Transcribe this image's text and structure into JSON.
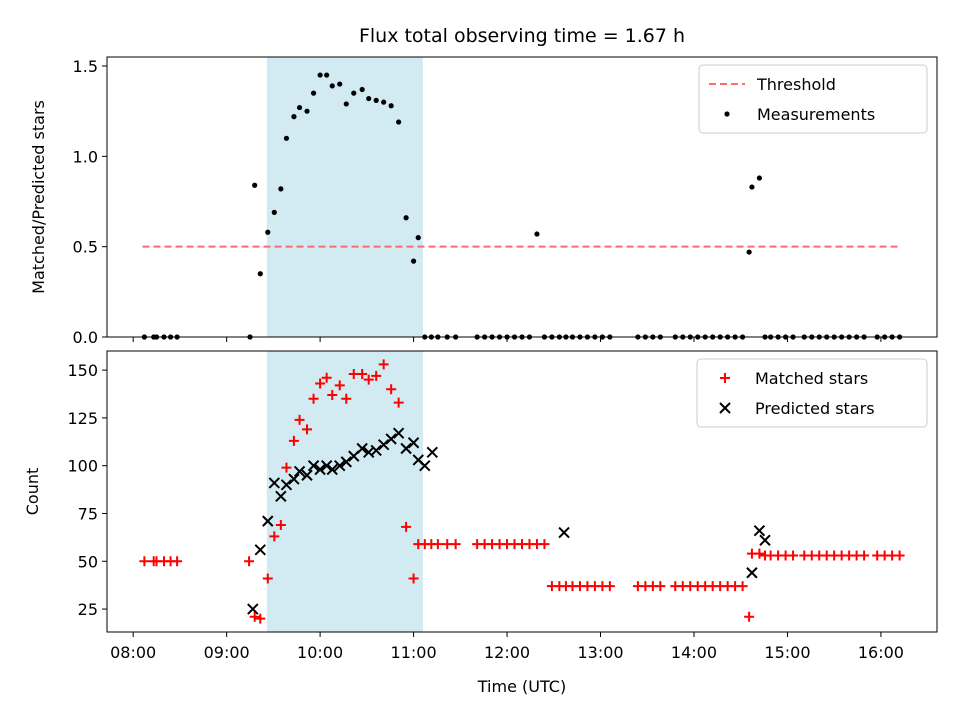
{
  "title": "Flux total observing time = 1.67 h",
  "colors": {
    "threshold": "#ff6a6a",
    "measurement": "#000000",
    "matched": "#ff0000",
    "predicted": "#000000",
    "span": "#add8e6"
  },
  "chart_data": [
    {
      "name": "ratio-panel",
      "type": "scatter",
      "ylabel": "Matched/Predicted stars",
      "xlim": [
        7.72,
        16.6
      ],
      "ylim": [
        0,
        1.55
      ],
      "yticks": [
        0,
        0.5,
        1.0,
        1.5
      ],
      "yticklabels": [
        "0.0",
        "0.5",
        "1.0",
        "1.5"
      ],
      "xticks": [
        8,
        9,
        10,
        11,
        12,
        13,
        14,
        15,
        16
      ],
      "span": [
        9.43,
        11.1
      ],
      "threshold": {
        "label": "Threshold",
        "value": 0.5,
        "x": [
          8.1,
          16.2
        ]
      },
      "legend": [
        "Threshold",
        "Measurements"
      ],
      "legend_loc": "top-right",
      "series": [
        {
          "name": "Measurements",
          "x": [
            8.12,
            8.22,
            8.25,
            8.33,
            8.4,
            8.47,
            9.25,
            9.3,
            9.36,
            9.44,
            9.51,
            9.58,
            9.64,
            9.72,
            9.78,
            9.86,
            9.93,
            10.0,
            10.07,
            10.13,
            10.21,
            10.28,
            10.36,
            10.45,
            10.52,
            10.6,
            10.68,
            10.76,
            10.84,
            10.92,
            11.0,
            11.05,
            11.12,
            11.19,
            11.26,
            11.36,
            11.45,
            11.68,
            11.76,
            11.84,
            11.92,
            12.0,
            12.08,
            12.16,
            12.24,
            12.32,
            12.4,
            12.48,
            12.56,
            12.63,
            12.7,
            12.78,
            12.86,
            12.94,
            13.02,
            13.1,
            13.4,
            13.48,
            13.56,
            13.64,
            13.8,
            13.88,
            13.96,
            14.04,
            14.12,
            14.2,
            14.28,
            14.36,
            14.44,
            14.52,
            14.59,
            14.62,
            14.7,
            14.76,
            14.82,
            14.9,
            14.98,
            15.06,
            15.18,
            15.26,
            15.34,
            15.42,
            15.5,
            15.58,
            15.66,
            15.74,
            15.82,
            15.96,
            16.04,
            16.12,
            16.2
          ],
          "y": [
            0,
            0,
            0,
            0,
            0,
            0,
            0,
            0.84,
            0.35,
            0.58,
            0.69,
            0.82,
            1.1,
            1.22,
            1.27,
            1.25,
            1.35,
            1.45,
            1.45,
            1.39,
            1.4,
            1.29,
            1.35,
            1.37,
            1.32,
            1.31,
            1.3,
            1.28,
            1.19,
            0.66,
            0.42,
            0.55,
            0,
            0,
            0,
            0,
            0,
            0,
            0,
            0,
            0,
            0,
            0,
            0,
            0,
            0.57,
            0,
            0,
            0,
            0,
            0,
            0,
            0,
            0,
            0,
            0,
            0,
            0,
            0,
            0,
            0,
            0,
            0,
            0,
            0,
            0,
            0,
            0,
            0,
            0,
            0.47,
            0.83,
            0.88,
            0,
            0,
            0,
            0,
            0,
            0,
            0,
            0,
            0,
            0,
            0,
            0,
            0,
            0,
            0,
            0,
            0,
            0
          ]
        }
      ]
    },
    {
      "name": "count-panel",
      "type": "scatter",
      "xlabel": "Time (UTC)",
      "ylabel": "Count",
      "xlim": [
        7.72,
        16.6
      ],
      "ylim": [
        13,
        160
      ],
      "yticks": [
        25,
        50,
        75,
        100,
        125,
        150
      ],
      "yticklabels": [
        "25",
        "50",
        "75",
        "100",
        "125",
        "150"
      ],
      "xticks": [
        8,
        9,
        10,
        11,
        12,
        13,
        14,
        15,
        16
      ],
      "xticklabels": [
        "08:00",
        "09:00",
        "10:00",
        "11:00",
        "12:00",
        "13:00",
        "14:00",
        "15:00",
        "16:00"
      ],
      "span": [
        9.43,
        11.1
      ],
      "legend": [
        "Matched stars",
        "Predicted stars"
      ],
      "legend_loc": "top-right",
      "series": [
        {
          "name": "Matched stars",
          "marker": "plus",
          "x": [
            8.12,
            8.22,
            8.25,
            8.33,
            8.4,
            8.47,
            9.24,
            9.3,
            9.36,
            9.44,
            9.51,
            9.58,
            9.64,
            9.72,
            9.78,
            9.86,
            9.93,
            10.0,
            10.07,
            10.13,
            10.21,
            10.28,
            10.36,
            10.45,
            10.52,
            10.6,
            10.68,
            10.76,
            10.84,
            10.92,
            11.0,
            11.05,
            11.12,
            11.19,
            11.26,
            11.36,
            11.45,
            11.68,
            11.76,
            11.84,
            11.92,
            12.0,
            12.08,
            12.16,
            12.24,
            12.32,
            12.4,
            12.48,
            12.56,
            12.63,
            12.7,
            12.78,
            12.86,
            12.94,
            13.02,
            13.1,
            13.4,
            13.48,
            13.56,
            13.64,
            13.8,
            13.88,
            13.96,
            14.04,
            14.12,
            14.2,
            14.28,
            14.36,
            14.44,
            14.52,
            14.59,
            14.62,
            14.7,
            14.76,
            14.82,
            14.9,
            14.98,
            15.06,
            15.18,
            15.26,
            15.34,
            15.42,
            15.5,
            15.58,
            15.66,
            15.74,
            15.82,
            15.96,
            16.04,
            16.12,
            16.2
          ],
          "y": [
            50,
            50,
            50,
            50,
            50,
            50,
            50,
            21,
            20,
            41,
            63,
            69,
            99,
            113,
            124,
            119,
            135,
            143,
            146,
            137,
            142,
            135,
            148,
            148,
            145,
            147,
            153,
            140,
            133,
            68,
            41,
            59,
            59,
            59,
            59,
            59,
            59,
            59,
            59,
            59,
            59,
            59,
            59,
            59,
            59,
            59,
            59,
            37,
            37,
            37,
            37,
            37,
            37,
            37,
            37,
            37,
            37,
            37,
            37,
            37,
            37,
            37,
            37,
            37,
            37,
            37,
            37,
            37,
            37,
            37,
            21,
            54,
            54,
            53,
            53,
            53,
            53,
            53,
            53,
            53,
            53,
            53,
            53,
            53,
            53,
            53,
            53,
            53,
            53,
            53,
            53
          ]
        },
        {
          "name": "Predicted stars",
          "marker": "x",
          "x": [
            9.28,
            9.36,
            9.44,
            9.51,
            9.58,
            9.64,
            9.72,
            9.78,
            9.86,
            9.93,
            10.0,
            10.07,
            10.13,
            10.21,
            10.28,
            10.36,
            10.45,
            10.52,
            10.6,
            10.68,
            10.76,
            10.84,
            10.92,
            11.0,
            11.05,
            11.12,
            11.2,
            12.61,
            14.62,
            14.7,
            14.76
          ],
          "y": [
            25,
            56,
            71,
            91,
            84,
            90,
            93,
            97,
            95,
            100,
            98,
            100,
            98,
            100,
            102,
            105,
            109,
            107,
            108,
            111,
            114,
            117,
            109,
            112,
            103,
            100,
            107,
            65,
            44,
            66,
            61
          ]
        }
      ]
    }
  ]
}
